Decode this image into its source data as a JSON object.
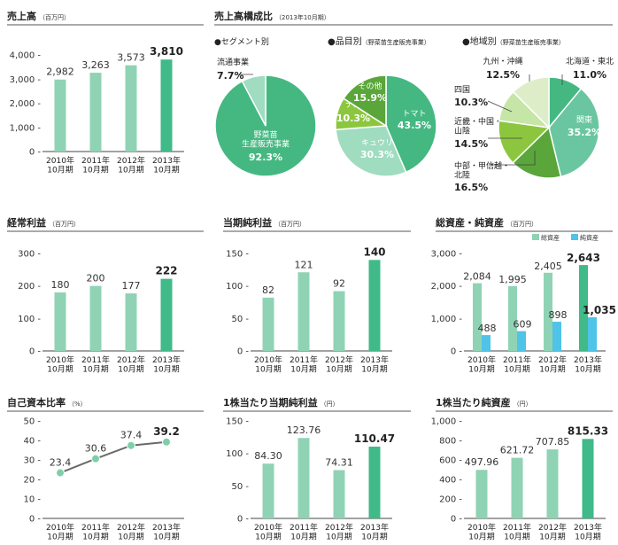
{
  "colors": {
    "bar": "#8fd3b4",
    "bar_last": "#3fba88",
    "cyan": "#4fc3e8",
    "pie1": "#45b882",
    "pie2": "#9fdcc0",
    "pie3": "#6ac6a0",
    "pie4": "#8cc63f",
    "pie5": "#5aa63a",
    "pie6": "#c5e6a6",
    "pie7": "#dcedc8",
    "line": "#6a6a6a",
    "dot": "#7ecfa9"
  },
  "charts": [
    {
      "id": "sales",
      "title": "売上高",
      "unit": "（百万円）",
      "categories": [
        "2010年\n10月期",
        "2011年\n10月期",
        "2012年\n10月期",
        "2013年\n10月期"
      ],
      "values": [
        2982,
        3263,
        3573,
        3810
      ],
      "labels": [
        "2,982",
        "3,263",
        "3,573",
        "3,810"
      ],
      "ylim": [
        0,
        4000
      ],
      "ticks": [
        0,
        1000,
        2000,
        3000,
        4000
      ],
      "tick_labels": [
        "0",
        "1,000",
        "2,000",
        "3,000",
        "4,000"
      ]
    },
    {
      "id": "ordinary",
      "title": "経常利益",
      "unit": "（百万円）",
      "categories": [
        "2010年\n10月期",
        "2011年\n10月期",
        "2012年\n10月期",
        "2013年\n10月期"
      ],
      "values": [
        180,
        200,
        177,
        222
      ],
      "labels": [
        "180",
        "200",
        "177",
        "222"
      ],
      "ylim": [
        0,
        300
      ],
      "ticks": [
        0,
        100,
        200,
        300
      ],
      "tick_labels": [
        "0",
        "100",
        "200",
        "300"
      ]
    },
    {
      "id": "net",
      "title": "当期純利益",
      "unit": "（百万円）",
      "categories": [
        "2010年\n10月期",
        "2011年\n10月期",
        "2012年\n10月期",
        "2013年\n10月期"
      ],
      "values": [
        82,
        121,
        92,
        140
      ],
      "labels": [
        "82",
        "121",
        "92",
        "140"
      ],
      "ylim": [
        0,
        150
      ],
      "ticks": [
        0,
        50,
        100,
        150
      ],
      "tick_labels": [
        "0",
        "50",
        "100",
        "150"
      ]
    },
    {
      "id": "eps",
      "title": "1株当たり当期純利益",
      "unit": "（円）",
      "categories": [
        "2010年\n10月期",
        "2011年\n10月期",
        "2012年\n10月期",
        "2013年\n10月期"
      ],
      "values": [
        84.3,
        123.76,
        74.31,
        110.47
      ],
      "labels": [
        "84.30",
        "123.76",
        "74.31",
        "110.47"
      ],
      "ylim": [
        0,
        150
      ],
      "ticks": [
        0,
        50,
        100,
        150
      ],
      "tick_labels": [
        "0",
        "50",
        "100",
        "150"
      ]
    },
    {
      "id": "bps",
      "title": "1株当たり純資産",
      "unit": "（円）",
      "categories": [
        "2010年\n10月期",
        "2011年\n10月期",
        "2012年\n10月期",
        "2013年\n10月期"
      ],
      "values": [
        497.96,
        621.72,
        707.85,
        815.33
      ],
      "labels": [
        "497.96",
        "621.72",
        "707.85",
        "815.33"
      ],
      "ylim": [
        0,
        1000
      ],
      "ticks": [
        0,
        200,
        400,
        600,
        800,
        1000
      ],
      "tick_labels": [
        "0",
        "200",
        "400",
        "600",
        "800",
        "1,000"
      ]
    }
  ],
  "assets": {
    "title": "総資産・純資産",
    "unit": "（百万円）",
    "legend": [
      "総資産",
      "純資産"
    ],
    "categories": [
      "2010年\n10月期",
      "2011年\n10月期",
      "2012年\n10月期",
      "2013年\n10月期"
    ],
    "total": [
      2084,
      1995,
      2405,
      2643
    ],
    "net": [
      488,
      609,
      898,
      1035
    ],
    "total_labels": [
      "2,084",
      "1,995",
      "2,405",
      "2,643"
    ],
    "net_labels": [
      "488",
      "609",
      "898",
      "1,035"
    ],
    "ylim": [
      0,
      3000
    ],
    "ticks": [
      0,
      1000,
      2000,
      3000
    ],
    "tick_labels": [
      "0",
      "1,000",
      "2,000",
      "3,000"
    ]
  },
  "equity": {
    "title": "自己資本比率",
    "unit": "（%）",
    "categories": [
      "2010年\n10月期",
      "2011年\n10月期",
      "2012年\n10月期",
      "2013年\n10月期"
    ],
    "values": [
      23.4,
      30.6,
      37.4,
      39.2
    ],
    "labels": [
      "23.4",
      "30.6",
      "37.4",
      "39.2"
    ],
    "ylim": [
      0,
      50
    ],
    "ticks": [
      0,
      10,
      20,
      30,
      40,
      50
    ],
    "tick_labels": [
      "0",
      "10",
      "20",
      "30",
      "40",
      "50"
    ]
  },
  "composition": {
    "title": "売上高構成比",
    "unit": "（2013年10月期）",
    "segment": {
      "title": "●セグメント別",
      "slices": [
        {
          "name": "野菜苗\n生産販売事業",
          "value": 92.3,
          "label": "92.3%"
        },
        {
          "name": "流通事業",
          "value": 7.7,
          "label": "7.7%"
        }
      ]
    },
    "product": {
      "title": "●品目別",
      "note": "（野菜苗生産販売事業）",
      "slices": [
        {
          "name": "トマト",
          "value": 43.5,
          "label": "43.5%"
        },
        {
          "name": "キュウリ",
          "value": 30.3,
          "label": "30.3%"
        },
        {
          "name": "ナス",
          "value": 10.3,
          "label": "10.3%"
        },
        {
          "name": "その他",
          "value": 15.9,
          "label": "15.9%"
        }
      ]
    },
    "region": {
      "title": "●地域別",
      "note": "（野菜苗生産販売事業）",
      "slices": [
        {
          "name": "北海道・東北",
          "value": 11.0,
          "label": "11.0%"
        },
        {
          "name": "関東",
          "value": 35.2,
          "label": "35.2%"
        },
        {
          "name": "中部・甲信越・\n北陸",
          "value": 16.5,
          "label": "16.5%"
        },
        {
          "name": "近畿・中国・\n山陰",
          "value": 14.5,
          "label": "14.5%"
        },
        {
          "name": "四国",
          "value": 10.3,
          "label": "10.3%"
        },
        {
          "name": "九州・沖縄",
          "value": 12.5,
          "label": "12.5%"
        }
      ]
    }
  }
}
